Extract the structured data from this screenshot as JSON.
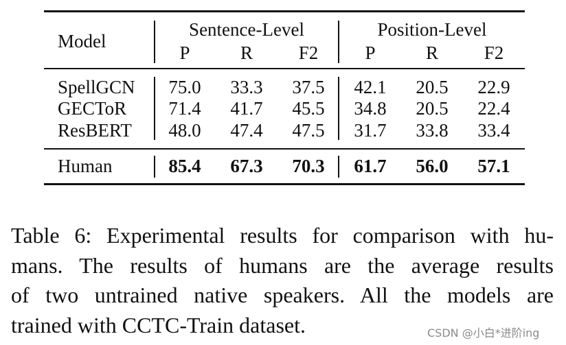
{
  "table": {
    "model_header": "Model",
    "group_headers": [
      "Sentence-Level",
      "Position-Level"
    ],
    "sub_headers": [
      "P",
      "R",
      "F2",
      "P",
      "R",
      "F2"
    ],
    "rows": [
      {
        "model": "SpellGCN",
        "values": [
          "75.0",
          "33.3",
          "37.5",
          "42.1",
          "20.5",
          "22.9"
        ]
      },
      {
        "model": "GECToR",
        "values": [
          "71.4",
          "41.7",
          "45.5",
          "34.8",
          "20.5",
          "22.4"
        ]
      },
      {
        "model": "ResBERT",
        "values": [
          "48.0",
          "47.4",
          "47.5",
          "31.7",
          "33.8",
          "33.4"
        ]
      }
    ],
    "human_row": {
      "model": "Human",
      "values": [
        "85.4",
        "67.3",
        "70.3",
        "61.7",
        "56.0",
        "57.1"
      ]
    }
  },
  "caption": {
    "lines": [
      "Table 6: Experimental results for comparison with hu-",
      "mans.  The results of humans are the average results",
      "of two untrained native speakers.  All the models are",
      "trained with CCTC-Train dataset."
    ]
  },
  "watermark": "CSDN @小白*进阶ing"
}
